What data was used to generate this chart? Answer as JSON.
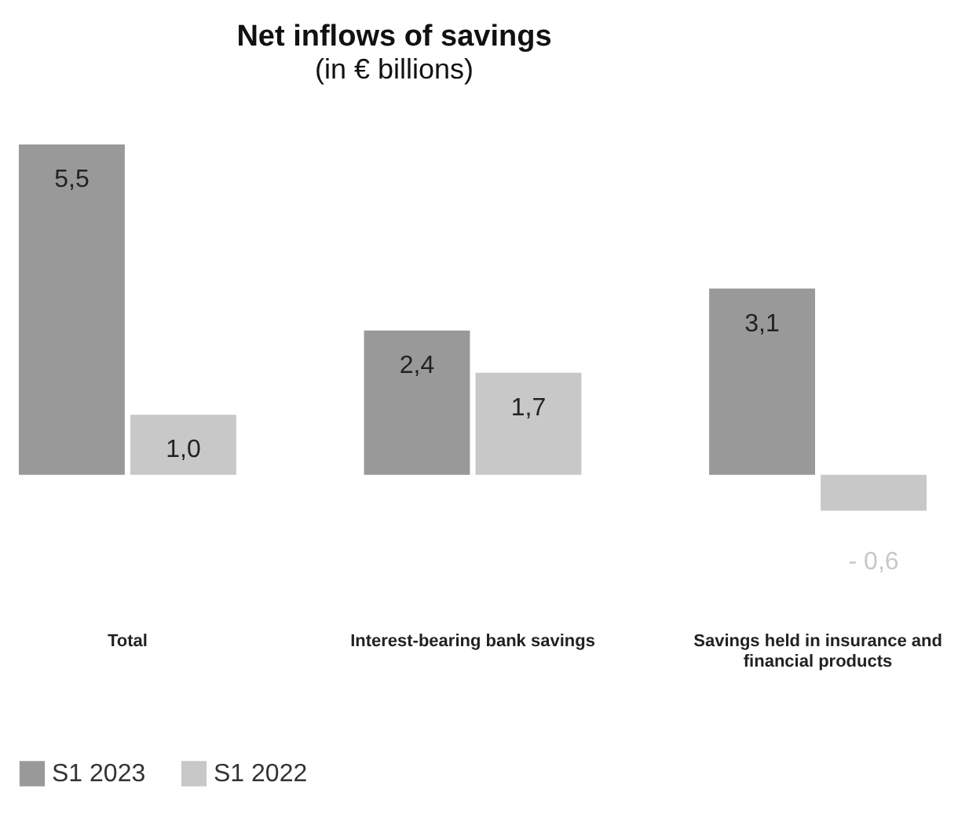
{
  "chart_data": {
    "type": "bar",
    "title": "Net inflows of savings",
    "subtitle": "(in € billions)",
    "categories": [
      "Total",
      "Interest-bearing bank savings",
      "Savings held in insurance and financial products"
    ],
    "series": [
      {
        "name": "S1 2023",
        "color": "#999999",
        "values": [
          5.5,
          2.4,
          3.1
        ],
        "value_labels": [
          "5,5",
          "2,4",
          "3,1"
        ]
      },
      {
        "name": "S1 2022",
        "color": "#c8c8c8",
        "values": [
          1.0,
          1.7,
          -0.6
        ],
        "value_labels": [
          "1,0",
          "1,7",
          "- 0,6"
        ]
      }
    ],
    "tick_labels": "x",
    "grid": false,
    "legend": "bottom left"
  }
}
